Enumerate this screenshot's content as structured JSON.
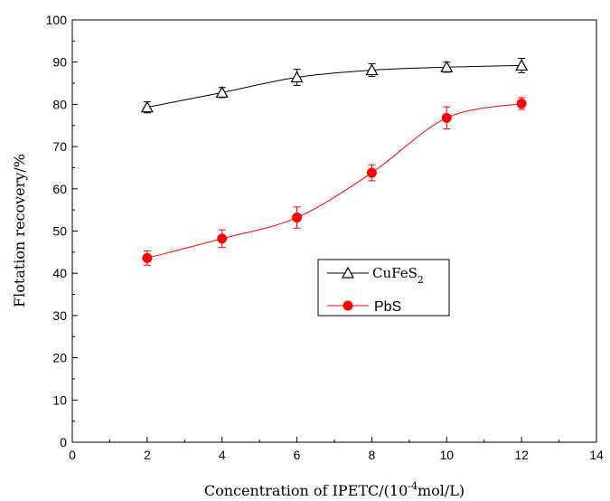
{
  "chart_data": {
    "type": "line",
    "xlabel": "Concentration of IPETC/(10",
    "xlabel_sup": "-4",
    "xlabel_tail": "mol/L)",
    "ylabel": "Flotation recovery/%",
    "xlim": [
      0,
      14
    ],
    "ylim": [
      0,
      100
    ],
    "xticks": [
      0,
      2,
      4,
      6,
      8,
      10,
      12,
      14
    ],
    "yticks": [
      0,
      10,
      20,
      30,
      40,
      50,
      60,
      70,
      80,
      90,
      100
    ],
    "grid": false,
    "legend_position": "center",
    "x": [
      2,
      4,
      6,
      8,
      10,
      12
    ],
    "series": [
      {
        "name_main": "CuFeS",
        "name_sub": "2",
        "marker": "open-triangle",
        "color": "#000000",
        "values": [
          79.3,
          82.8,
          86.4,
          88.1,
          88.8,
          89.2
        ],
        "errors": [
          1.3,
          1.2,
          1.9,
          1.5,
          1.2,
          1.7
        ]
      },
      {
        "name": "PbS",
        "marker": "filled-circle",
        "color": "#ff0000",
        "values": [
          43.6,
          48.2,
          53.2,
          63.8,
          76.8,
          80.2
        ],
        "errors": [
          1.7,
          2.1,
          2.5,
          1.9,
          2.6,
          1.4
        ]
      }
    ]
  }
}
